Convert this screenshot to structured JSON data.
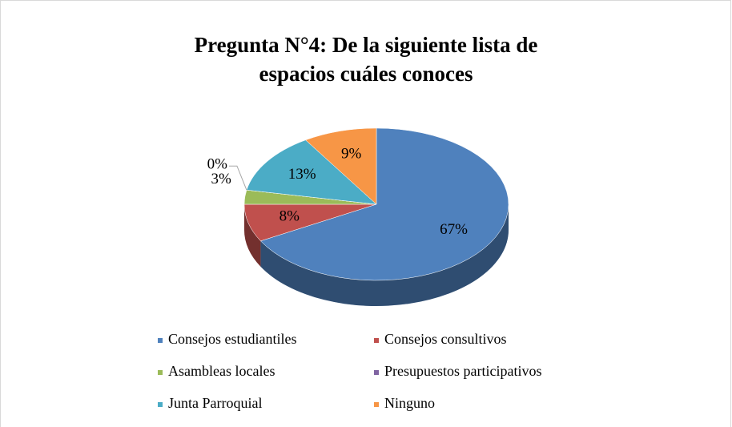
{
  "chart_data": {
    "type": "pie",
    "title": "Pregunta N°4: De la siguiente lista de espacios cuáles conoces",
    "categories": [
      "Consejos estudiantiles",
      "Consejos consultivos",
      "Asambleas locales",
      "Presupuestos participativos",
      "Junta Parroquial",
      "Ninguno"
    ],
    "values": [
      67,
      8,
      3,
      0,
      13,
      9
    ],
    "value_labels": [
      "67%",
      "8%",
      "3%",
      "0%",
      "13%",
      "9%"
    ],
    "colors": [
      "#4f81bd",
      "#c0504d",
      "#9bbb59",
      "#8064a2",
      "#4bacc6",
      "#f79646"
    ],
    "legend": "bottom"
  }
}
